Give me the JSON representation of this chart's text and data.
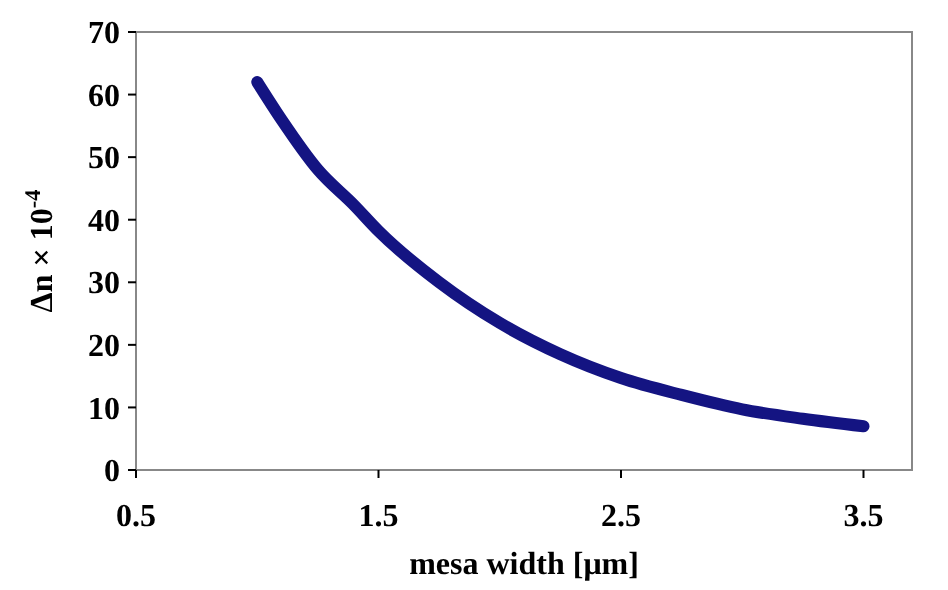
{
  "chart_data": {
    "type": "line",
    "xlabel": "mesa width [μm]",
    "ylabel": "Δn × 10$^{-4}$",
    "series": [
      {
        "color": "#141482",
        "x": [
          1,
          1.1,
          1.25,
          1.4,
          1.5,
          1.75,
          2,
          2.25,
          2.5,
          2.75,
          3,
          3.25,
          3.5
        ],
        "values": [
          62,
          56,
          48,
          42.3,
          38.2,
          30,
          23.5,
          18.5,
          14.7,
          12,
          9.7,
          8.2,
          7
        ]
      }
    ],
    "xlim": [
      0.5,
      3.7
    ],
    "xticks": [
      0.5,
      1.5,
      2.5,
      3.5
    ],
    "ylim": [
      0,
      70
    ],
    "yticks": [
      0,
      10,
      20,
      30,
      40,
      50,
      60,
      70
    ],
    "marker": "none",
    "line_style": "solid"
  }
}
